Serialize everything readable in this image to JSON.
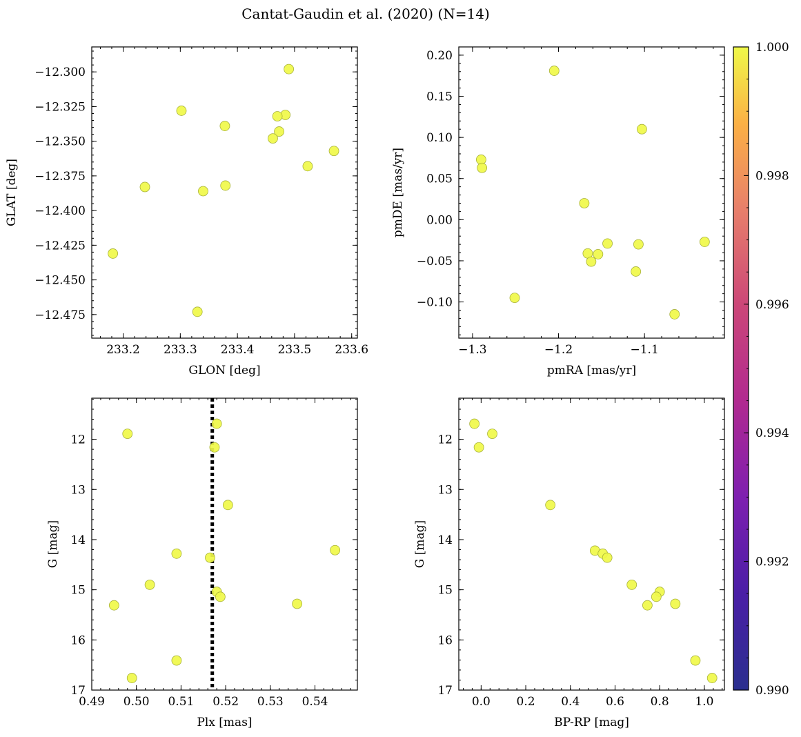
{
  "chart_data": [
    {
      "type": "scatter",
      "id": "p1",
      "title": "Cantat-Gaudin et al. (2020) (N=14)",
      "xlabel": "GLON [deg]",
      "ylabel": "GLAT [deg]",
      "xlim": [
        233.145,
        233.61
      ],
      "ylim": [
        -12.492,
        -12.282
      ],
      "invert_y": false,
      "xticks": [
        233.2,
        233.3,
        233.4,
        233.5,
        233.6
      ],
      "xtick_labels": [
        "233.2",
        "233.3",
        "233.4",
        "233.5",
        "233.6"
      ],
      "yticks": [
        -12.3,
        -12.325,
        -12.35,
        -12.375,
        -12.4,
        -12.425,
        -12.45,
        -12.475
      ],
      "ytick_labels": [
        "−12.300",
        "−12.325",
        "−12.350",
        "−12.375",
        "−12.400",
        "−12.425",
        "−12.450",
        "−12.475"
      ],
      "x": [
        233.49,
        233.302,
        233.484,
        233.47,
        233.378,
        233.473,
        233.462,
        233.569,
        233.523,
        233.238,
        233.379,
        233.34,
        233.182,
        233.33
      ],
      "y": [
        -12.298,
        -12.328,
        -12.331,
        -12.332,
        -12.339,
        -12.343,
        -12.348,
        -12.357,
        -12.368,
        -12.383,
        -12.382,
        -12.386,
        -12.431,
        -12.473
      ]
    },
    {
      "type": "scatter",
      "id": "p2",
      "xlabel": "pmRA [mas/yr]",
      "ylabel": "pmDE [mas/yr]",
      "xlim": [
        -1.316,
        -1.007
      ],
      "ylim": [
        -0.144,
        0.21
      ],
      "invert_y": false,
      "xticks": [
        -1.3,
        -1.2,
        -1.1
      ],
      "xtick_labels": [
        "−1.3",
        "−1.2",
        "−1.1"
      ],
      "yticks": [
        0.2,
        0.15,
        0.1,
        0.05,
        0.0,
        -0.05,
        -0.1
      ],
      "ytick_labels": [
        "0.20",
        "0.15",
        "0.10",
        "0.05",
        "0.00",
        "−0.05",
        "−0.10"
      ],
      "x": [
        -1.205,
        -1.103,
        -1.29,
        -1.289,
        -1.17,
        -1.166,
        -1.143,
        -1.154,
        -1.162,
        -1.107,
        -1.03,
        -1.11,
        -1.251,
        -1.065
      ],
      "y": [
        0.181,
        0.11,
        0.073,
        0.063,
        0.02,
        -0.041,
        -0.029,
        -0.042,
        -0.051,
        -0.03,
        -0.027,
        -0.063,
        -0.095,
        -0.115
      ]
    },
    {
      "type": "scatter",
      "id": "p3",
      "xlabel": "Plx [mas]",
      "ylabel": "G [mag]",
      "xlim": [
        0.49,
        0.5495
      ],
      "ylim": [
        17.0,
        11.18
      ],
      "invert_y": true,
      "vline": 0.517,
      "xticks": [
        0.49,
        0.5,
        0.51,
        0.52,
        0.53,
        0.54
      ],
      "xtick_labels": [
        "0.49",
        "0.50",
        "0.51",
        "0.52",
        "0.53",
        "0.54"
      ],
      "yticks": [
        12,
        13,
        14,
        15,
        16,
        17
      ],
      "ytick_labels": [
        "12",
        "13",
        "14",
        "15",
        "16",
        "17"
      ],
      "x": [
        0.518,
        0.498,
        0.5175,
        0.5205,
        0.509,
        0.5165,
        0.5445,
        0.503,
        0.518,
        0.5188,
        0.495,
        0.536,
        0.509,
        0.499
      ],
      "y": [
        11.69,
        11.89,
        12.16,
        13.31,
        14.28,
        14.36,
        14.21,
        14.9,
        15.04,
        15.14,
        15.31,
        15.28,
        16.41,
        16.76
      ]
    },
    {
      "type": "scatter",
      "id": "p4",
      "xlabel": "BP-RP [mag]",
      "ylabel": "G [mag]",
      "xlim": [
        -0.1,
        1.09
      ],
      "ylim": [
        17.0,
        11.18
      ],
      "invert_y": true,
      "xticks": [
        0.0,
        0.2,
        0.4,
        0.6,
        0.8,
        1.0
      ],
      "xtick_labels": [
        "0.0",
        "0.2",
        "0.4",
        "0.6",
        "0.8",
        "1.0"
      ],
      "yticks": [
        12,
        13,
        14,
        15,
        16,
        17
      ],
      "ytick_labels": [
        "12",
        "13",
        "14",
        "15",
        "16",
        "17"
      ],
      "x": [
        -0.03,
        0.05,
        -0.01,
        0.31,
        0.51,
        0.545,
        0.565,
        0.675,
        0.8,
        0.785,
        0.745,
        0.87,
        0.96,
        1.035
      ],
      "y": [
        11.69,
        11.89,
        12.16,
        13.31,
        14.22,
        14.28,
        14.36,
        14.9,
        15.04,
        15.14,
        15.31,
        15.28,
        16.41,
        16.76
      ]
    },
    {
      "type": "colorbar",
      "id": "cbar",
      "colormap": "plasma",
      "range": [
        0.99,
        1.0
      ],
      "ticks": [
        1.0,
        0.998,
        0.996,
        0.994,
        0.992,
        0.99
      ],
      "tick_labels": [
        "1.000",
        "0.998",
        "0.996",
        "0.994",
        "0.992",
        "0.990"
      ],
      "colors": [
        "#f0f949",
        "#fcb539",
        "#e16462",
        "#b12a90",
        "#6a00a8",
        "#2a2f8f"
      ]
    }
  ],
  "point_color": "#f0f949"
}
